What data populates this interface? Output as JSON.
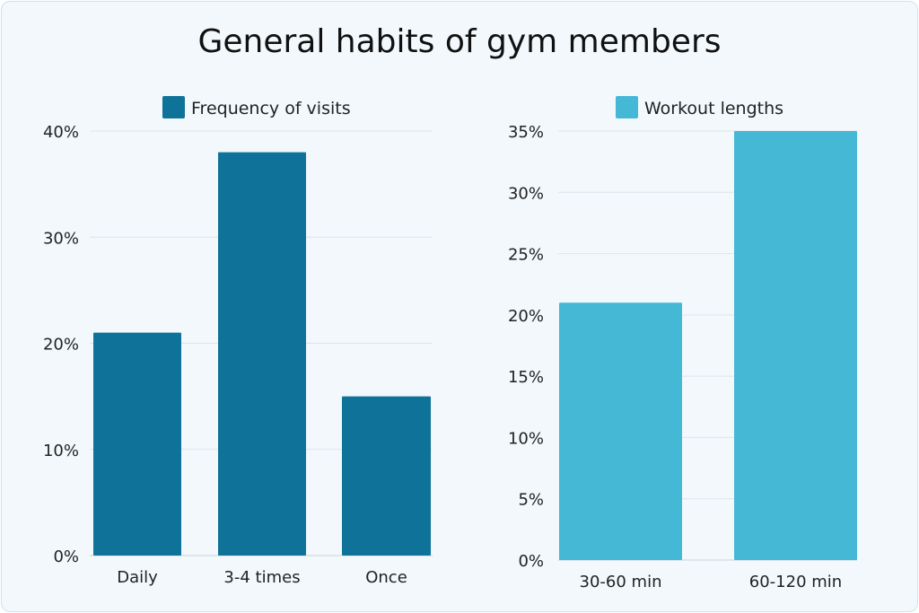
{
  "title": "General habits of gym members",
  "chart_data": [
    {
      "type": "bar",
      "legend": "Frequency of visits",
      "categories": [
        "Daily",
        "3-4 times",
        "Once"
      ],
      "values": [
        21,
        38,
        15
      ],
      "ylim": [
        0,
        40
      ],
      "yticks": [
        "0%",
        "10%",
        "20%",
        "30%",
        "40%"
      ],
      "ytick_values": [
        0,
        10,
        20,
        30,
        40
      ],
      "color": "#0f7399",
      "grid": true,
      "legend_position": "top"
    },
    {
      "type": "bar",
      "legend": "Workout lengths",
      "categories": [
        "30-60 min",
        "60-120 min"
      ],
      "values": [
        21,
        35
      ],
      "ylim": [
        0,
        35
      ],
      "yticks": [
        "0%",
        "5%",
        "10%",
        "15%",
        "20%",
        "25%",
        "30%",
        "35%"
      ],
      "ytick_values": [
        0,
        5,
        10,
        15,
        20,
        25,
        30,
        35
      ],
      "color": "#45b8d6",
      "grid": true,
      "legend_position": "top"
    }
  ]
}
